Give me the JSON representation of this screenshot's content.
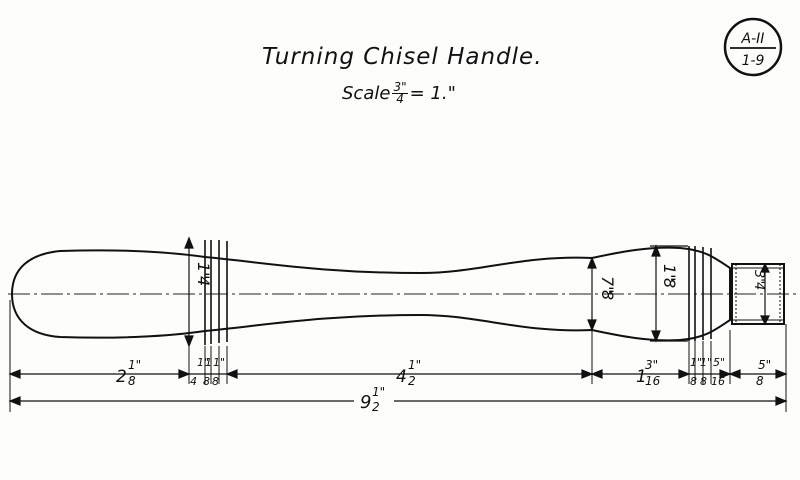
{
  "drawing": {
    "title": "Turning Chisel Handle.",
    "scale_label": "Scale",
    "scale_num": "3\"",
    "scale_den": "4",
    "scale_rest": "= 1.\"",
    "badge_top": "A-II",
    "badge_bottom": "1-9"
  },
  "dimensions": {
    "d1_whole": "2",
    "d1_num": "1\"",
    "d1_den": "8",
    "d2_num": "1\"",
    "d2_den": "4",
    "d3_num": "1",
    "d3_den": "8",
    "d4_num": "1\"",
    "d4_den": "8",
    "d5_whole": "4",
    "d5_num": "1\"",
    "d5_den": "2",
    "d6_whole": "1",
    "d6_num": "3\"",
    "d6_den": "16",
    "d7_num": "1\"",
    "d7_den": "8",
    "d8_num": "1\"",
    "d8_den": "8",
    "d9_num": "5\"",
    "d9_den": "16",
    "d10_num": "5\"",
    "d10_den": "8",
    "total_whole": "9",
    "total_num": "1\"",
    "total_den": "2",
    "dia_a": "1\"",
    "dia_a_den": "4",
    "dia_b": "7\"",
    "dia_b_den": "8",
    "dia_c": "1\"",
    "dia_c_den": "8",
    "dia_d": "3\"",
    "dia_d_den": "4"
  }
}
